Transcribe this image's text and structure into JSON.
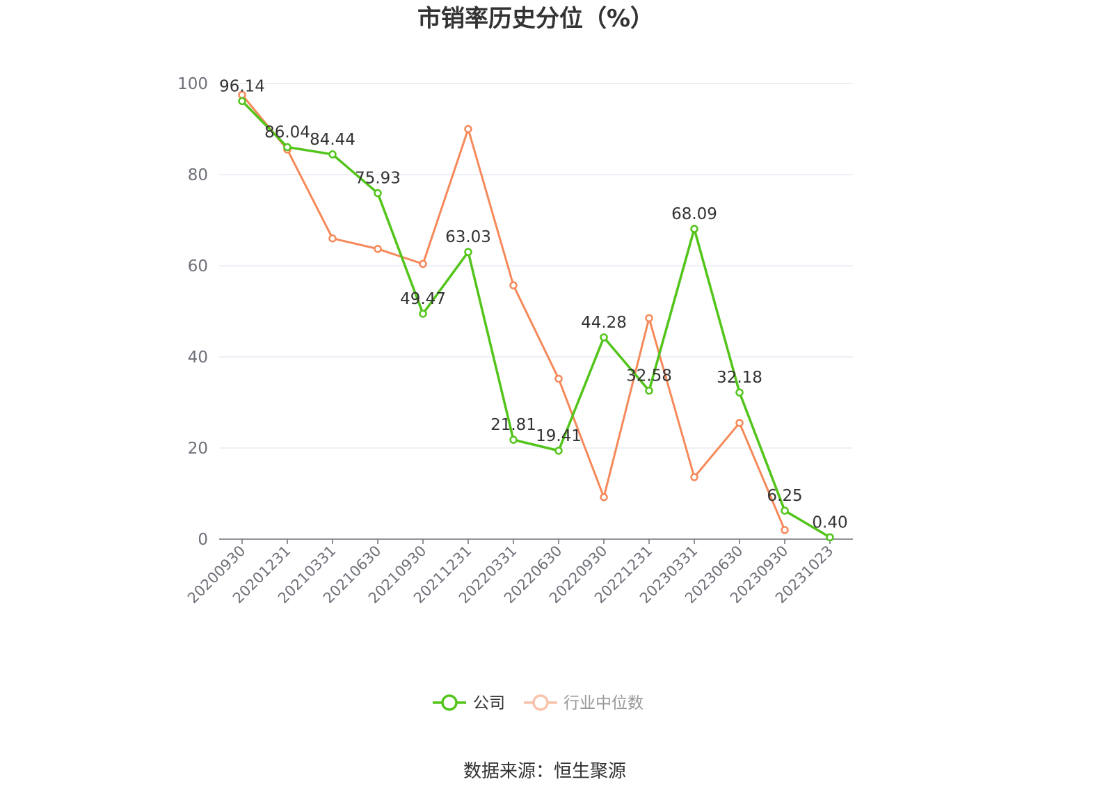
{
  "chart_data": {
    "type": "line",
    "title": "市销率历史分位（%）",
    "source": "数据来源：恒生聚源",
    "categories": [
      "20200930",
      "20201231",
      "20210331",
      "20210630",
      "20210930",
      "20211231",
      "20220331",
      "20220630",
      "20220930",
      "20221231",
      "20230331",
      "20230630",
      "20230930",
      "20231023"
    ],
    "ylim": [
      0,
      100
    ],
    "yticks": [
      0,
      20,
      40,
      60,
      80,
      100
    ],
    "grid": true,
    "legend_position": "bottom",
    "series": [
      {
        "name": "公司",
        "color": "#52c41a",
        "show_labels": true,
        "values": [
          96.14,
          86.04,
          84.44,
          75.93,
          49.47,
          63.03,
          21.81,
          19.41,
          44.28,
          32.58,
          68.09,
          32.18,
          6.25,
          0.4
        ],
        "labels": [
          "96.14",
          "86.04",
          "84.44",
          "75.93",
          "49.47",
          "63.03",
          "21.81",
          "19.41",
          "44.28",
          "32.58",
          "68.09",
          "32.18",
          "6.25",
          "0.40"
        ]
      },
      {
        "name": "行业中位数",
        "color": "#f5895a",
        "show_labels": false,
        "values": [
          97.5,
          85.5,
          66.0,
          63.7,
          60.4,
          90.0,
          55.7,
          35.2,
          9.2,
          48.5,
          13.6,
          25.5,
          2.0,
          null
        ]
      }
    ]
  }
}
